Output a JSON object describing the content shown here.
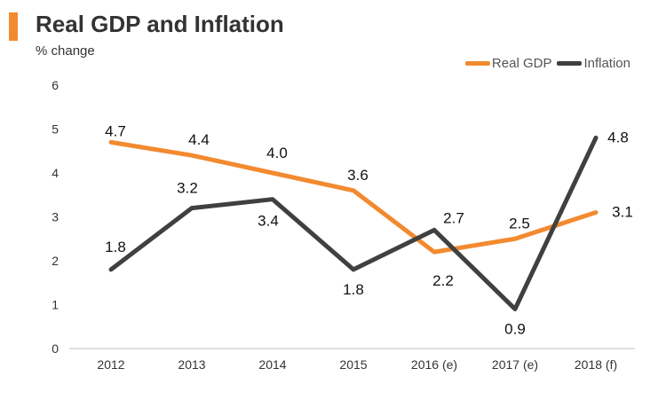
{
  "chart_data": {
    "type": "line",
    "title": "Real GDP and Inflation",
    "ylabel": "% change",
    "categories": [
      "2012",
      "2013",
      "2014",
      "2015",
      "2016 (e)",
      "2017 (e)",
      "2018 (f)"
    ],
    "ylim": [
      0,
      6
    ],
    "yticks": [
      "0",
      "1",
      "2",
      "3",
      "4",
      "5",
      "6"
    ],
    "grid": false,
    "legend_position": "top-right",
    "series": [
      {
        "name": "Real GDP",
        "color": "#f28a30",
        "values": [
          4.7,
          4.4,
          4.0,
          3.6,
          2.2,
          2.5,
          3.1
        ],
        "labels": [
          "4.7",
          "4.4",
          "4.0",
          "3.6",
          "2.2",
          "2.5",
          "3.1"
        ]
      },
      {
        "name": "Inflation",
        "color": "#404040",
        "values": [
          1.8,
          3.2,
          3.4,
          1.8,
          2.7,
          0.9,
          4.8
        ],
        "labels": [
          "1.8",
          "3.2",
          "3.4",
          "1.8",
          "2.7",
          "0.9",
          "4.8"
        ]
      }
    ]
  }
}
